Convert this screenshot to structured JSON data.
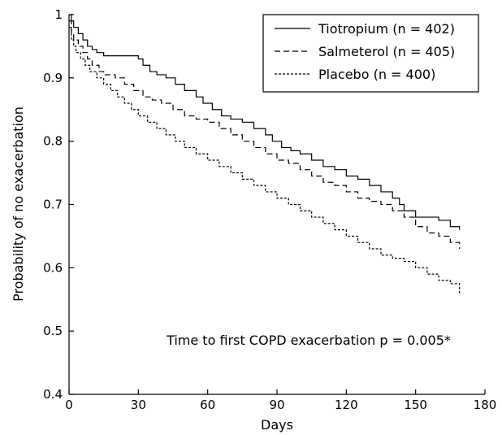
{
  "chart_data": {
    "type": "line",
    "step": true,
    "xlabel": "Days",
    "ylabel": "Probability of no exacerbation",
    "xlim": [
      0,
      180
    ],
    "ylim": [
      0.4,
      1.0
    ],
    "xticks": [
      0,
      30,
      60,
      90,
      120,
      150,
      180
    ],
    "yticks": [
      0.4,
      0.5,
      0.6,
      0.7,
      0.8,
      0.9,
      1.0
    ],
    "xtick_labels": [
      "0",
      "30",
      "60",
      "90",
      "120",
      "150",
      "180"
    ],
    "ytick_labels": [
      "0.4",
      "0.5",
      "0.6",
      "0.7",
      "0.8",
      "0.9",
      "1"
    ],
    "grid": false,
    "legend_position": "top-right",
    "annotation": "Time to first COPD exacerbation p = 0.005*",
    "series": [
      {
        "name": "Tiotropium (n = 402)",
        "style": "solid",
        "x": [
          0,
          1,
          2,
          4,
          6,
          8,
          10,
          12,
          15,
          30,
          32,
          35,
          38,
          42,
          46,
          50,
          55,
          58,
          62,
          66,
          70,
          75,
          80,
          85,
          88,
          92,
          96,
          100,
          105,
          110,
          115,
          120,
          125,
          130,
          135,
          140,
          143,
          145,
          150,
          155,
          160,
          165,
          169
        ],
        "y": [
          1.0,
          0.99,
          0.98,
          0.97,
          0.96,
          0.95,
          0.945,
          0.94,
          0.935,
          0.93,
          0.92,
          0.91,
          0.905,
          0.9,
          0.89,
          0.88,
          0.87,
          0.86,
          0.85,
          0.84,
          0.835,
          0.83,
          0.82,
          0.81,
          0.8,
          0.79,
          0.785,
          0.78,
          0.77,
          0.76,
          0.755,
          0.745,
          0.74,
          0.73,
          0.72,
          0.71,
          0.7,
          0.69,
          0.68,
          0.68,
          0.675,
          0.665,
          0.66
        ]
      },
      {
        "name": "Salmeterol (n = 405)",
        "style": "dashed",
        "x": [
          0,
          1,
          2,
          4,
          6,
          8,
          10,
          13,
          15,
          20,
          24,
          28,
          32,
          36,
          40,
          45,
          50,
          55,
          60,
          65,
          70,
          75,
          80,
          85,
          90,
          95,
          100,
          105,
          110,
          115,
          120,
          125,
          130,
          135,
          140,
          145,
          150,
          155,
          160,
          165,
          169
        ],
        "y": [
          0.99,
          0.97,
          0.96,
          0.95,
          0.94,
          0.93,
          0.92,
          0.91,
          0.905,
          0.9,
          0.89,
          0.88,
          0.87,
          0.865,
          0.86,
          0.85,
          0.84,
          0.835,
          0.83,
          0.82,
          0.81,
          0.8,
          0.79,
          0.78,
          0.77,
          0.765,
          0.755,
          0.745,
          0.735,
          0.73,
          0.72,
          0.71,
          0.705,
          0.7,
          0.69,
          0.68,
          0.665,
          0.655,
          0.65,
          0.64,
          0.63
        ]
      },
      {
        "name": "Placebo (n = 400)",
        "style": "dotted",
        "x": [
          0,
          1,
          2,
          3,
          5,
          7,
          9,
          12,
          15,
          18,
          21,
          24,
          27,
          30,
          34,
          38,
          42,
          46,
          50,
          55,
          60,
          65,
          70,
          75,
          80,
          85,
          90,
          95,
          100,
          105,
          110,
          115,
          120,
          125,
          130,
          135,
          140,
          145,
          150,
          155,
          160,
          165,
          169
        ],
        "y": [
          0.98,
          0.96,
          0.95,
          0.94,
          0.93,
          0.92,
          0.91,
          0.9,
          0.89,
          0.88,
          0.87,
          0.86,
          0.85,
          0.84,
          0.83,
          0.82,
          0.81,
          0.8,
          0.79,
          0.78,
          0.77,
          0.76,
          0.75,
          0.74,
          0.73,
          0.72,
          0.71,
          0.7,
          0.69,
          0.68,
          0.67,
          0.66,
          0.65,
          0.64,
          0.63,
          0.62,
          0.615,
          0.61,
          0.6,
          0.59,
          0.58,
          0.575,
          0.56
        ]
      }
    ]
  }
}
